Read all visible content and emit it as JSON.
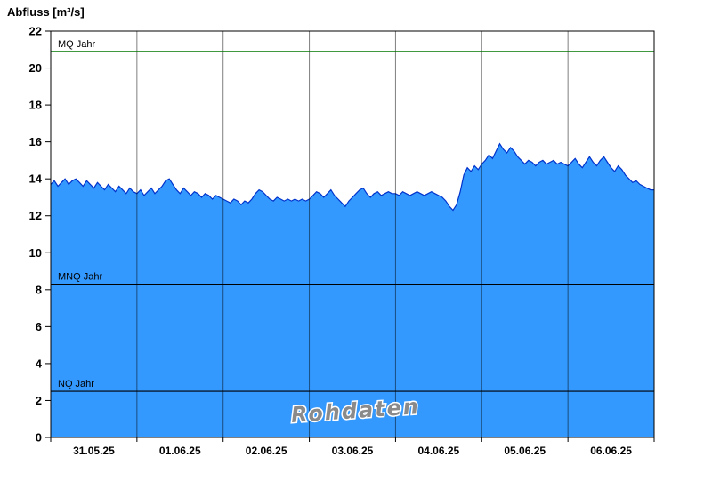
{
  "title": "Abfluss [m³/s]",
  "chart_data": {
    "type": "area",
    "title": "Abfluss [m³/s]",
    "ylabel": "Abfluss [m³/s]",
    "ylim": [
      0,
      22
    ],
    "y_ticks": [
      0,
      2,
      4,
      6,
      8,
      10,
      12,
      14,
      16,
      18,
      20,
      22
    ],
    "x_tick_labels": [
      "31.05.25",
      "01.06.25",
      "02.06.25",
      "03.06.25",
      "04.06.25",
      "05.06.25",
      "06.06.25"
    ],
    "x_days": 7,
    "values_per_day": 24,
    "grid": "vertical-daily",
    "legend": "none",
    "watermark": "Rohdaten",
    "colors": {
      "fill": "#3399ff",
      "line": "#0033cc",
      "grid": "rgba(0,0,0,0.5)"
    },
    "reference_lines": [
      {
        "label": "MQ Jahr",
        "value": 20.9,
        "color": "#007700"
      },
      {
        "label": "MNQ Jahr",
        "value": 8.3,
        "color": "#000000"
      },
      {
        "label": "NQ Jahr",
        "value": 2.5,
        "color": "#000000"
      }
    ],
    "series": [
      {
        "name": "Abfluss",
        "values": [
          13.7,
          13.9,
          13.6,
          13.8,
          14.0,
          13.7,
          13.9,
          14.0,
          13.8,
          13.6,
          13.9,
          13.7,
          13.5,
          13.8,
          13.6,
          13.4,
          13.7,
          13.5,
          13.3,
          13.6,
          13.4,
          13.2,
          13.5,
          13.3,
          13.2,
          13.4,
          13.1,
          13.3,
          13.5,
          13.2,
          13.4,
          13.6,
          13.9,
          14.0,
          13.7,
          13.4,
          13.2,
          13.5,
          13.3,
          13.1,
          13.3,
          13.2,
          13.0,
          13.2,
          13.1,
          12.9,
          13.1,
          13.0,
          12.9,
          12.8,
          12.7,
          12.9,
          12.8,
          12.6,
          12.8,
          12.7,
          12.9,
          13.2,
          13.4,
          13.3,
          13.1,
          12.9,
          12.8,
          13.0,
          12.9,
          12.8,
          12.9,
          12.8,
          12.9,
          12.8,
          12.9,
          12.8,
          12.9,
          13.1,
          13.3,
          13.2,
          13.0,
          13.2,
          13.4,
          13.1,
          12.9,
          12.7,
          12.5,
          12.8,
          13.0,
          13.2,
          13.4,
          13.5,
          13.2,
          13.0,
          13.2,
          13.3,
          13.1,
          13.2,
          13.3,
          13.2,
          13.2,
          13.1,
          13.3,
          13.2,
          13.1,
          13.2,
          13.3,
          13.2,
          13.1,
          13.2,
          13.3,
          13.2,
          13.1,
          13.0,
          12.8,
          12.5,
          12.3,
          12.6,
          13.3,
          14.2,
          14.6,
          14.4,
          14.7,
          14.5,
          14.8,
          15.0,
          15.3,
          15.1,
          15.5,
          15.9,
          15.6,
          15.4,
          15.7,
          15.5,
          15.2,
          15.0,
          14.8,
          15.0,
          14.9,
          14.7,
          14.9,
          15.0,
          14.8,
          14.9,
          15.0,
          14.8,
          14.9,
          14.8,
          14.7,
          14.9,
          15.1,
          14.8,
          14.6,
          14.9,
          15.2,
          14.9,
          14.7,
          15.0,
          15.2,
          14.9,
          14.6,
          14.4,
          14.7,
          14.5,
          14.2,
          14.0,
          13.8,
          13.9,
          13.7,
          13.6,
          13.5,
          13.4,
          13.4
        ]
      }
    ]
  }
}
